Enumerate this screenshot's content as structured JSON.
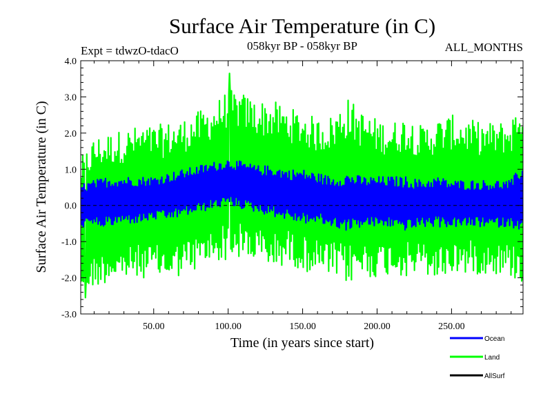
{
  "chart_data": {
    "type": "line",
    "title": "Surface Air Temperature (in C)",
    "subtitle": "058kyr BP - 058kyr BP",
    "experiment": "Expt = tdwzO-tdacO",
    "months": "ALL_MONTHS",
    "xlabel": "Time (in years since start)",
    "ylabel": "Surface Air Temperature (in C)",
    "xlim": [
      1,
      298
    ],
    "ylim": [
      -3.0,
      4.0
    ],
    "x_ticks": [
      50,
      100,
      150,
      200,
      250
    ],
    "x_tick_labels": [
      "50.00",
      "100.00",
      "150.00",
      "200.00",
      "250.00"
    ],
    "y_ticks": [
      -3,
      -2,
      -1,
      0,
      1,
      2,
      3,
      4
    ],
    "y_tick_labels": [
      "-3.0",
      "-2.0",
      "-1.0",
      "0.0",
      "1.0",
      "2.0",
      "3.0",
      "4.0"
    ],
    "zero_line": true,
    "series": [
      {
        "name": "Land",
        "color": "#00ff00",
        "envelope_x": [
          1,
          10,
          20,
          30,
          40,
          50,
          60,
          70,
          80,
          90,
          100,
          110,
          120,
          130,
          140,
          150,
          160,
          170,
          180,
          190,
          200,
          210,
          220,
          230,
          240,
          250,
          260,
          270,
          280,
          290,
          298
        ],
        "upper": [
          1.3,
          1.9,
          2.0,
          2.1,
          2.2,
          2.2,
          2.3,
          2.4,
          2.6,
          2.8,
          3.2,
          3.1,
          2.9,
          2.9,
          2.7,
          2.6,
          2.4,
          2.5,
          3.0,
          2.6,
          2.4,
          2.3,
          2.5,
          2.2,
          2.4,
          2.5,
          2.4,
          2.3,
          2.3,
          2.4,
          3.1
        ],
        "lower": [
          -2.4,
          -2.3,
          -2.1,
          -2.1,
          -2.0,
          -2.0,
          -2.1,
          -1.9,
          -1.8,
          -1.6,
          -1.5,
          -1.5,
          -1.6,
          -1.8,
          -1.6,
          -1.8,
          -1.9,
          -2.0,
          -2.2,
          -2.0,
          -2.0,
          -1.9,
          -2.0,
          -1.9,
          -2.1,
          -1.9,
          -1.9,
          -1.9,
          -1.9,
          -2.0,
          -2.2
        ],
        "peak_max": 3.65,
        "peak_max_x": 101,
        "peak_min": -2.55,
        "peak_min_x": 4
      },
      {
        "name": "Ocean",
        "color": "#0000ff",
        "envelope_x": [
          1,
          10,
          20,
          30,
          40,
          50,
          60,
          70,
          80,
          90,
          100,
          110,
          120,
          130,
          140,
          150,
          160,
          170,
          180,
          190,
          200,
          210,
          220,
          230,
          240,
          250,
          260,
          270,
          280,
          290,
          298
        ],
        "upper": [
          0.6,
          0.7,
          0.8,
          0.8,
          0.8,
          0.8,
          0.9,
          1.0,
          1.1,
          1.2,
          1.3,
          1.2,
          1.1,
          1.1,
          1.0,
          1.0,
          0.9,
          0.8,
          0.9,
          0.8,
          0.8,
          0.8,
          0.8,
          0.7,
          0.8,
          0.7,
          0.7,
          0.7,
          0.7,
          0.7,
          1.2
        ],
        "lower": [
          -0.6,
          -0.6,
          -0.6,
          -0.5,
          -0.5,
          -0.4,
          -0.4,
          -0.3,
          -0.2,
          -0.1,
          0.0,
          -0.1,
          -0.2,
          -0.3,
          -0.4,
          -0.5,
          -0.5,
          -0.6,
          -0.7,
          -0.6,
          -0.6,
          -0.6,
          -0.7,
          -0.6,
          -0.6,
          -0.6,
          -0.6,
          -0.6,
          -0.6,
          -0.6,
          -0.7
        ]
      },
      {
        "name": "AllSurf",
        "color": "#000000"
      }
    ],
    "legend_order": [
      "Ocean",
      "Land",
      "AllSurf"
    ],
    "legend_position": "bottom-right"
  }
}
